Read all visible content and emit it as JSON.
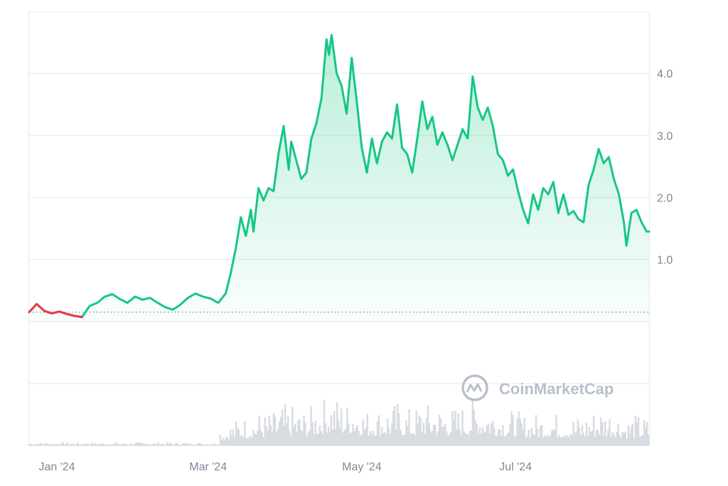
{
  "brand": {
    "watermark": "CoinMarketCap",
    "colors": {
      "up_line": "#16c784",
      "down_line": "#ea3943",
      "area_fill_top": "#16c784",
      "grid": "#e6e8ec",
      "baseline_dots": "#5b6270",
      "volume": "#d7dbe2",
      "axis_text": "#7f8795",
      "watermark": "#b9c0cc"
    }
  },
  "chart_data": {
    "type": "area",
    "title": "",
    "xlabel": "",
    "ylabel": "",
    "x_ticks": [
      "Jan '24",
      "Mar '24",
      "May '24",
      "Jul '24"
    ],
    "y_ticks": [
      "1.0",
      "2.0",
      "3.0",
      "4.0"
    ],
    "y_tick_values": [
      1.0,
      2.0,
      3.0,
      4.0
    ],
    "ylim": [
      -2.0,
      5.0
    ],
    "xlim": [
      "2023-12-21",
      "2024-08-23"
    ],
    "grid": true,
    "reference_price": 0.15,
    "series": [
      {
        "kind": "price",
        "points": [
          [
            "2023-12-21",
            0.15
          ],
          [
            "2023-12-24",
            0.28
          ],
          [
            "2023-12-27",
            0.17
          ],
          [
            "2023-12-30",
            0.13
          ],
          [
            "2024-01-02",
            0.16
          ],
          [
            "2024-01-05",
            0.12
          ],
          [
            "2024-01-08",
            0.09
          ],
          [
            "2024-01-11",
            0.07
          ],
          [
            "2024-01-14",
            0.25
          ],
          [
            "2024-01-17",
            0.3
          ],
          [
            "2024-01-20",
            0.4
          ],
          [
            "2024-01-23",
            0.44
          ],
          [
            "2024-01-26",
            0.36
          ],
          [
            "2024-01-29",
            0.3
          ],
          [
            "2024-02-01",
            0.4
          ],
          [
            "2024-02-04",
            0.35
          ],
          [
            "2024-02-07",
            0.38
          ],
          [
            "2024-02-10",
            0.3
          ],
          [
            "2024-02-13",
            0.23
          ],
          [
            "2024-02-16",
            0.19
          ],
          [
            "2024-02-19",
            0.27
          ],
          [
            "2024-02-22",
            0.38
          ],
          [
            "2024-02-25",
            0.45
          ],
          [
            "2024-02-28",
            0.4
          ],
          [
            "2024-03-02",
            0.37
          ],
          [
            "2024-03-05",
            0.3
          ],
          [
            "2024-03-08",
            0.45
          ],
          [
            "2024-03-10",
            0.78
          ],
          [
            "2024-03-12",
            1.18
          ],
          [
            "2024-03-14",
            1.68
          ],
          [
            "2024-03-16",
            1.38
          ],
          [
            "2024-03-18",
            1.8
          ],
          [
            "2024-03-19",
            1.45
          ],
          [
            "2024-03-21",
            2.15
          ],
          [
            "2024-03-23",
            1.95
          ],
          [
            "2024-03-25",
            2.15
          ],
          [
            "2024-03-27",
            2.1
          ],
          [
            "2024-03-29",
            2.72
          ],
          [
            "2024-03-31",
            3.15
          ],
          [
            "2024-04-02",
            2.45
          ],
          [
            "2024-04-03",
            2.9
          ],
          [
            "2024-04-05",
            2.6
          ],
          [
            "2024-04-07",
            2.3
          ],
          [
            "2024-04-09",
            2.4
          ],
          [
            "2024-04-11",
            2.95
          ],
          [
            "2024-04-13",
            3.2
          ],
          [
            "2024-04-15",
            3.6
          ],
          [
            "2024-04-17",
            4.55
          ],
          [
            "2024-04-18",
            4.3
          ],
          [
            "2024-04-19",
            4.62
          ],
          [
            "2024-04-21",
            4.0
          ],
          [
            "2024-04-23",
            3.8
          ],
          [
            "2024-04-25",
            3.35
          ],
          [
            "2024-04-27",
            4.25
          ],
          [
            "2024-04-29",
            3.55
          ],
          [
            "2024-05-01",
            2.8
          ],
          [
            "2024-05-03",
            2.4
          ],
          [
            "2024-05-05",
            2.95
          ],
          [
            "2024-05-07",
            2.55
          ],
          [
            "2024-05-09",
            2.9
          ],
          [
            "2024-05-11",
            3.05
          ],
          [
            "2024-05-13",
            2.95
          ],
          [
            "2024-05-15",
            3.5
          ],
          [
            "2024-05-17",
            2.8
          ],
          [
            "2024-05-19",
            2.7
          ],
          [
            "2024-05-21",
            2.4
          ],
          [
            "2024-05-23",
            2.95
          ],
          [
            "2024-05-25",
            3.55
          ],
          [
            "2024-05-27",
            3.1
          ],
          [
            "2024-05-29",
            3.3
          ],
          [
            "2024-05-31",
            2.85
          ],
          [
            "2024-06-02",
            3.05
          ],
          [
            "2024-06-04",
            2.85
          ],
          [
            "2024-06-06",
            2.6
          ],
          [
            "2024-06-08",
            2.85
          ],
          [
            "2024-06-10",
            3.1
          ],
          [
            "2024-06-12",
            2.95
          ],
          [
            "2024-06-14",
            3.95
          ],
          [
            "2024-06-16",
            3.45
          ],
          [
            "2024-06-18",
            3.25
          ],
          [
            "2024-06-20",
            3.45
          ],
          [
            "2024-06-22",
            3.15
          ],
          [
            "2024-06-24",
            2.7
          ],
          [
            "2024-06-26",
            2.6
          ],
          [
            "2024-06-28",
            2.35
          ],
          [
            "2024-06-30",
            2.45
          ],
          [
            "2024-07-02",
            2.1
          ],
          [
            "2024-07-04",
            1.8
          ],
          [
            "2024-07-06",
            1.58
          ],
          [
            "2024-07-08",
            2.05
          ],
          [
            "2024-07-10",
            1.8
          ],
          [
            "2024-07-12",
            2.15
          ],
          [
            "2024-07-14",
            2.05
          ],
          [
            "2024-07-16",
            2.25
          ],
          [
            "2024-07-18",
            1.75
          ],
          [
            "2024-07-20",
            2.05
          ],
          [
            "2024-07-22",
            1.72
          ],
          [
            "2024-07-24",
            1.78
          ],
          [
            "2024-07-26",
            1.65
          ],
          [
            "2024-07-28",
            1.6
          ],
          [
            "2024-07-30",
            2.2
          ],
          [
            "2024-08-01",
            2.45
          ],
          [
            "2024-08-03",
            2.78
          ],
          [
            "2024-08-05",
            2.55
          ],
          [
            "2024-08-07",
            2.65
          ],
          [
            "2024-08-09",
            2.3
          ],
          [
            "2024-08-11",
            2.05
          ],
          [
            "2024-08-13",
            1.6
          ],
          [
            "2024-08-14",
            1.22
          ],
          [
            "2024-08-16",
            1.75
          ],
          [
            "2024-08-18",
            1.8
          ],
          [
            "2024-08-20",
            1.6
          ],
          [
            "2024-08-22",
            1.45
          ],
          [
            "2024-08-23",
            1.45
          ]
        ]
      }
    ]
  }
}
